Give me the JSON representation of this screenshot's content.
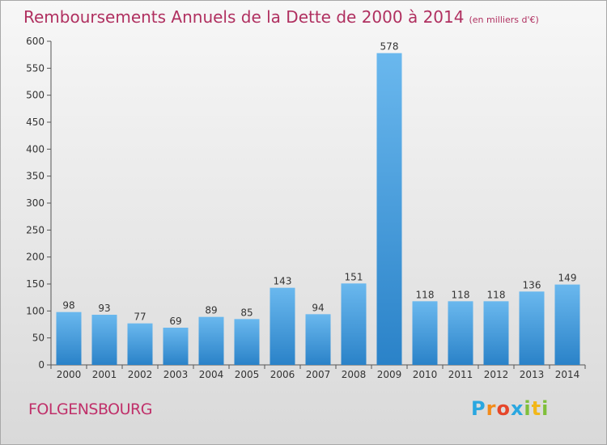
{
  "header": {
    "title": "Remboursements Annuels de la Dette de 2000 à 2014",
    "subtitle": "(en milliers d'€)"
  },
  "footer": {
    "location": "FOLGENSBOURG",
    "logo": "Proxiti"
  },
  "colors": {
    "title": "#b03060",
    "bar_light": "#6ab8ee",
    "bar_dark": "#2a82c8"
  },
  "chart_data": {
    "type": "bar",
    "title": "Remboursements Annuels de la Dette de 2000 à 2014",
    "subtitle": "(en milliers d'€)",
    "categories": [
      "2000",
      "2001",
      "2002",
      "2003",
      "2004",
      "2005",
      "2006",
      "2007",
      "2008",
      "2009",
      "2010",
      "2011",
      "2012",
      "2013",
      "2014"
    ],
    "values": [
      98,
      93,
      77,
      69,
      89,
      85,
      143,
      94,
      151,
      578,
      118,
      118,
      118,
      136,
      149
    ],
    "ylim": [
      0,
      600
    ],
    "yticks": [
      0,
      50,
      100,
      150,
      200,
      250,
      300,
      350,
      400,
      450,
      500,
      550,
      600
    ],
    "grid": false,
    "data_labels": true
  }
}
